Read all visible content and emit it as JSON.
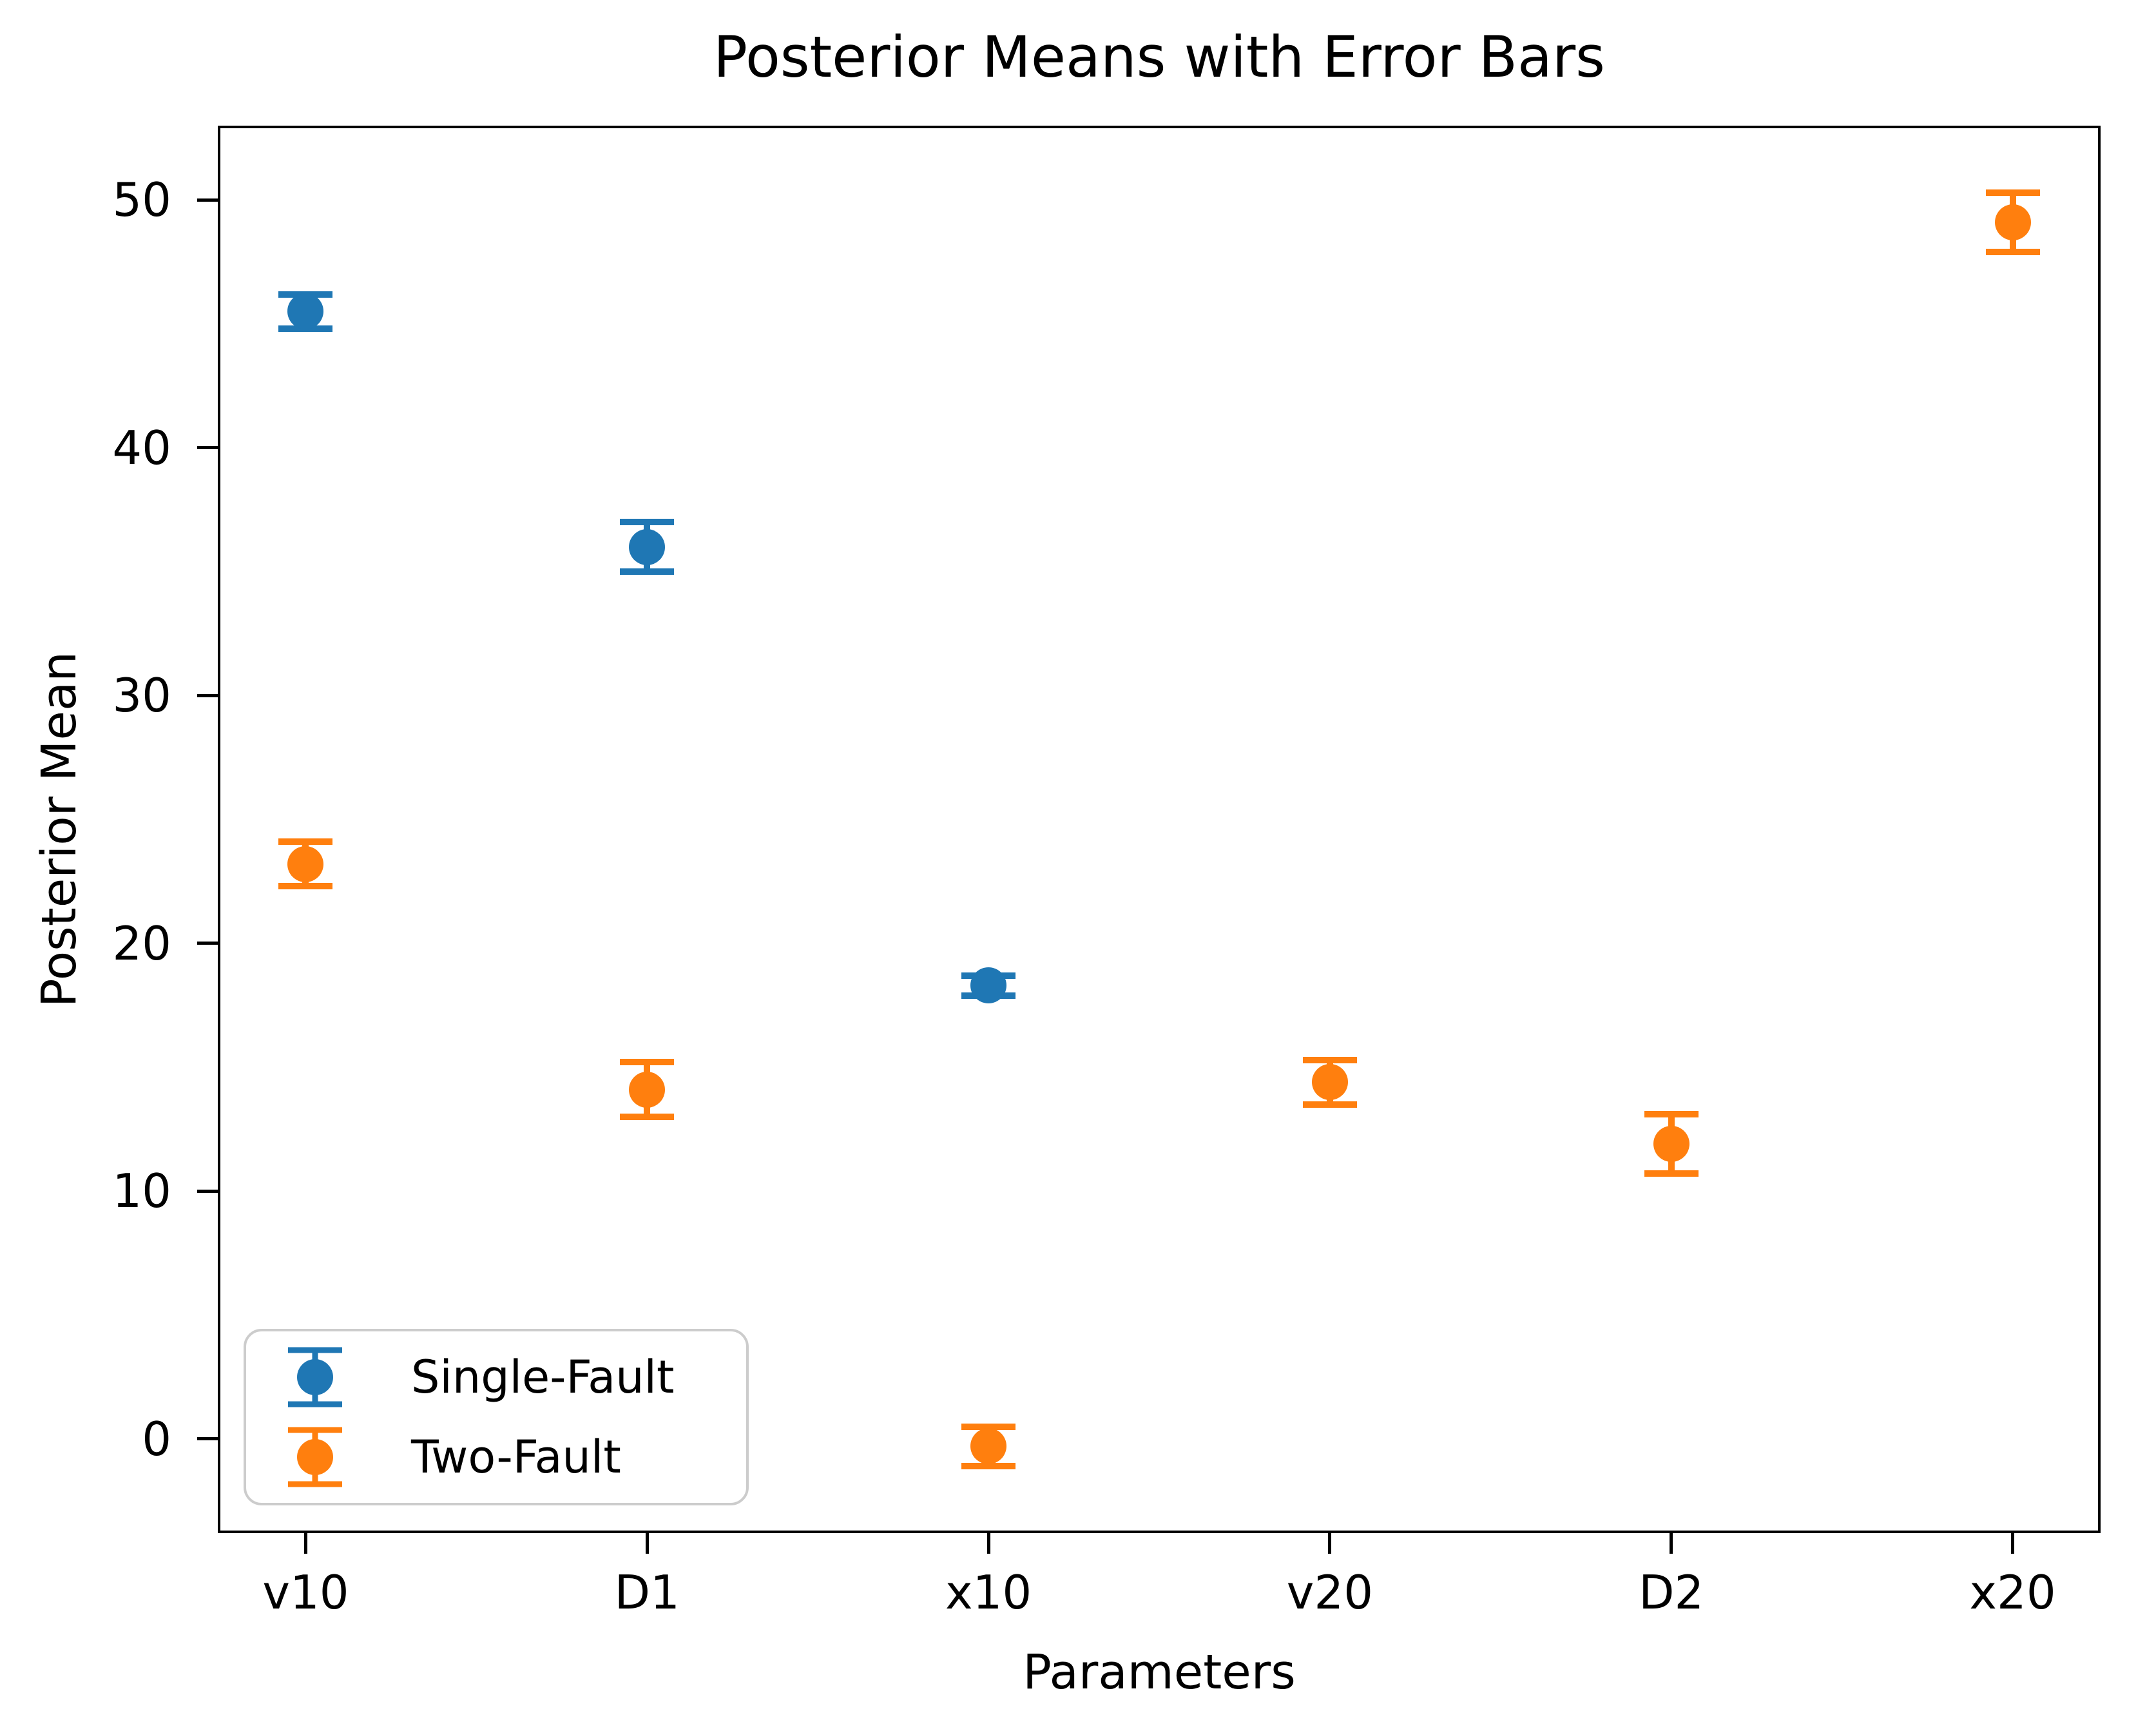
{
  "chart_data": {
    "type": "scatter",
    "title": "Posterior Means with Error Bars",
    "xlabel": "Parameters",
    "ylabel": "Posterior Mean",
    "categories": [
      "v10",
      "D1",
      "x10",
      "v20",
      "D2",
      "x20"
    ],
    "series": [
      {
        "name": "Single-Fault",
        "color": "#1f77b4",
        "values": [
          45.5,
          36.0,
          18.3,
          null,
          null,
          null
        ],
        "errors": [
          0.7,
          1.0,
          0.4,
          null,
          null,
          null
        ]
      },
      {
        "name": "Two-Fault",
        "color": "#ff7f0e",
        "values": [
          23.2,
          14.1,
          -0.3,
          14.4,
          11.9,
          49.1
        ],
        "errors": [
          0.9,
          1.1,
          0.8,
          0.9,
          1.2,
          1.2
        ]
      }
    ],
    "yticks": [
      0,
      10,
      20,
      30,
      40,
      50
    ],
    "ylim": [
      -3.7,
      52.9
    ],
    "xlim": [
      -0.25,
      5.25
    ],
    "grid": false,
    "legend_position": "lower left",
    "marker": "circle-with-errorbar-caps"
  }
}
